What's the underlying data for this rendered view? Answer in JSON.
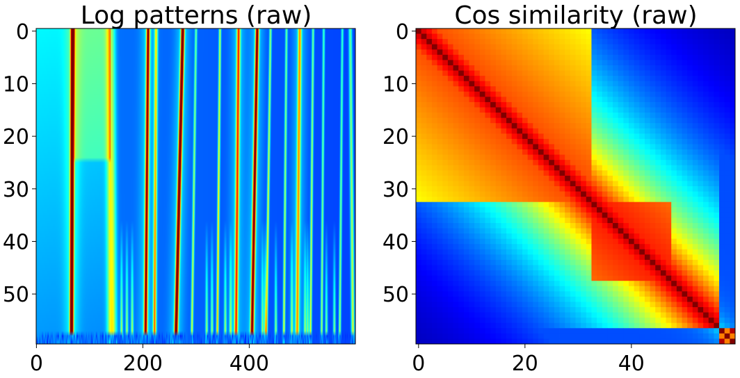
{
  "chart_data": [
    {
      "type": "heatmap",
      "title": "Log patterns (raw)",
      "xlabel": "",
      "ylabel": "",
      "colormap": "jet",
      "rows": 60,
      "cols": 600,
      "xlim": [
        0,
        599
      ],
      "ylim": [
        59,
        0
      ],
      "xticks": [
        0,
        200,
        400
      ],
      "yticks": [
        0,
        10,
        20,
        30,
        40,
        50
      ],
      "background_level": 0.25,
      "description_of_structure": [
        {
          "row_from": 0,
          "col_center_start": 68,
          "col_center_end": 66,
          "peak": 0.98
        },
        {
          "row_from": 0,
          "col_center_start": 210,
          "col_center_end": 205,
          "peak": 0.72
        },
        {
          "row_from": 0,
          "col_center_start": 275,
          "col_center_end": 262,
          "peak": 0.9
        },
        {
          "row_from": 0,
          "col_center_start": 380,
          "col_center_end": 375,
          "peak": 0.55
        },
        {
          "row_from": 0,
          "col_center_start": 415,
          "col_center_end": 405,
          "peak": 0.8
        },
        {
          "row_from": 0,
          "col_center_start": 495,
          "col_center_end": 490,
          "peak": 0.45
        }
      ]
    },
    {
      "type": "heatmap",
      "title": "Cos similarity (raw)",
      "xlabel": "",
      "ylabel": "",
      "colormap": "jet",
      "rows": 60,
      "cols": 60,
      "xlim": [
        0,
        59
      ],
      "ylim": [
        59,
        0
      ],
      "xticks": [
        0,
        20,
        40
      ],
      "yticks": [
        0,
        10,
        20,
        30,
        40,
        50
      ],
      "blocks": [
        {
          "from": 0,
          "to": 33,
          "level": 0.82
        },
        {
          "from": 33,
          "to": 48,
          "level": 0.86
        },
        {
          "from": 48,
          "to": 60,
          "level": 0.7
        }
      ]
    }
  ]
}
